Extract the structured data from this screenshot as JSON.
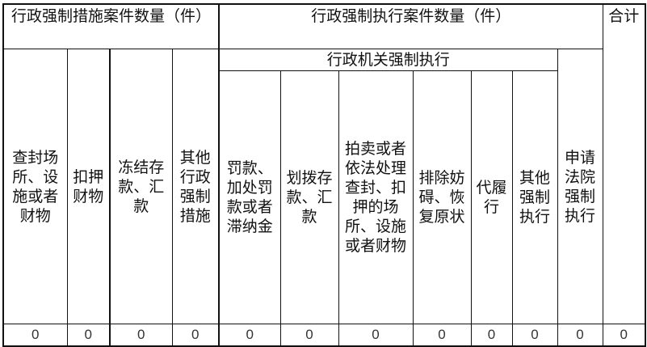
{
  "headers": {
    "measures_group": "行政强制措施案件数量（件）",
    "enforcement_group": "行政强制执行案件数量（件）",
    "admin_enforcement_group": "行政机关强制执行",
    "court_enforcement": "申请法院强制执行",
    "total": "合计"
  },
  "measure_columns": [
    "查封场所、设施或者财物",
    "扣押财物",
    "冻结存款、汇款",
    "其他行政强制措施"
  ],
  "admin_columns": [
    "罚款、加处罚款或者滞纳金",
    "划拨存款、汇款",
    "拍卖或者依法处理查封、扣押的场所、设施或者财物",
    "排除妨碍、恢复原状",
    "代履行",
    "其他强制执行"
  ],
  "values": [
    "0",
    "0",
    "0",
    "0",
    "0",
    "0",
    "0",
    "0",
    "0",
    "0",
    "0",
    "0"
  ]
}
